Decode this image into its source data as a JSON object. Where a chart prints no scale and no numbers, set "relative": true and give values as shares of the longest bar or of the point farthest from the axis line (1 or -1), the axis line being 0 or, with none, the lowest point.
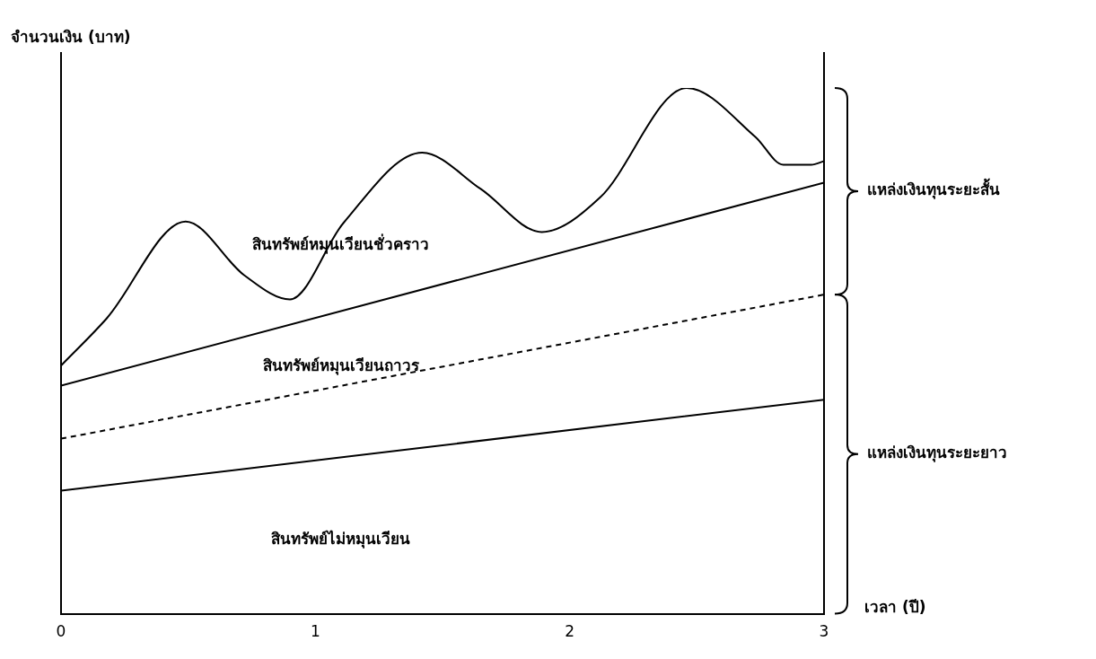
{
  "chart_data": {
    "type": "line",
    "relative": true,
    "xlabel": "เวลา (ปี)",
    "ylabel": "จำนวนเงิน (บาท)",
    "xlim": [
      0,
      3
    ],
    "xticks": [
      0,
      1,
      2,
      3
    ],
    "grid": false,
    "legend": false,
    "marker": "none",
    "series": [
      {
        "color": "#000000",
        "line_style": "solid",
        "x": [
          0,
          0.18,
          0.49,
          0.72,
          0.9,
          1.11,
          1.42,
          1.65,
          1.89,
          2.12,
          2.46,
          2.73,
          2.84,
          2.95,
          3
        ],
        "values": [
          0.472,
          0.562,
          0.746,
          0.644,
          0.598,
          0.743,
          0.877,
          0.808,
          0.726,
          0.792,
          1,
          0.907,
          0.854,
          0.854,
          0.861
        ]
      },
      {
        "color": "#000000",
        "line_style": "solid",
        "x": [
          0,
          3
        ],
        "values": [
          0.434,
          0.82
        ]
      },
      {
        "color": "#000000",
        "line_style": "dashed",
        "x": [
          0,
          3
        ],
        "values": [
          0.333,
          0.607
        ]
      },
      {
        "color": "#000000",
        "line_style": "solid",
        "x": [
          0,
          3
        ],
        "values": [
          0.234,
          0.407
        ]
      }
    ],
    "annotations": [
      "สินทรัพย์หมุนเวียนชั่วคราว",
      "สินทรัพย์หมุนเวียนถาวร",
      "สินทรัพย์ไม่หมุนเวียน",
      "แหล่งเงินทุนระยะสั้น",
      "แหล่งเงินทุนระยะยาว"
    ]
  }
}
